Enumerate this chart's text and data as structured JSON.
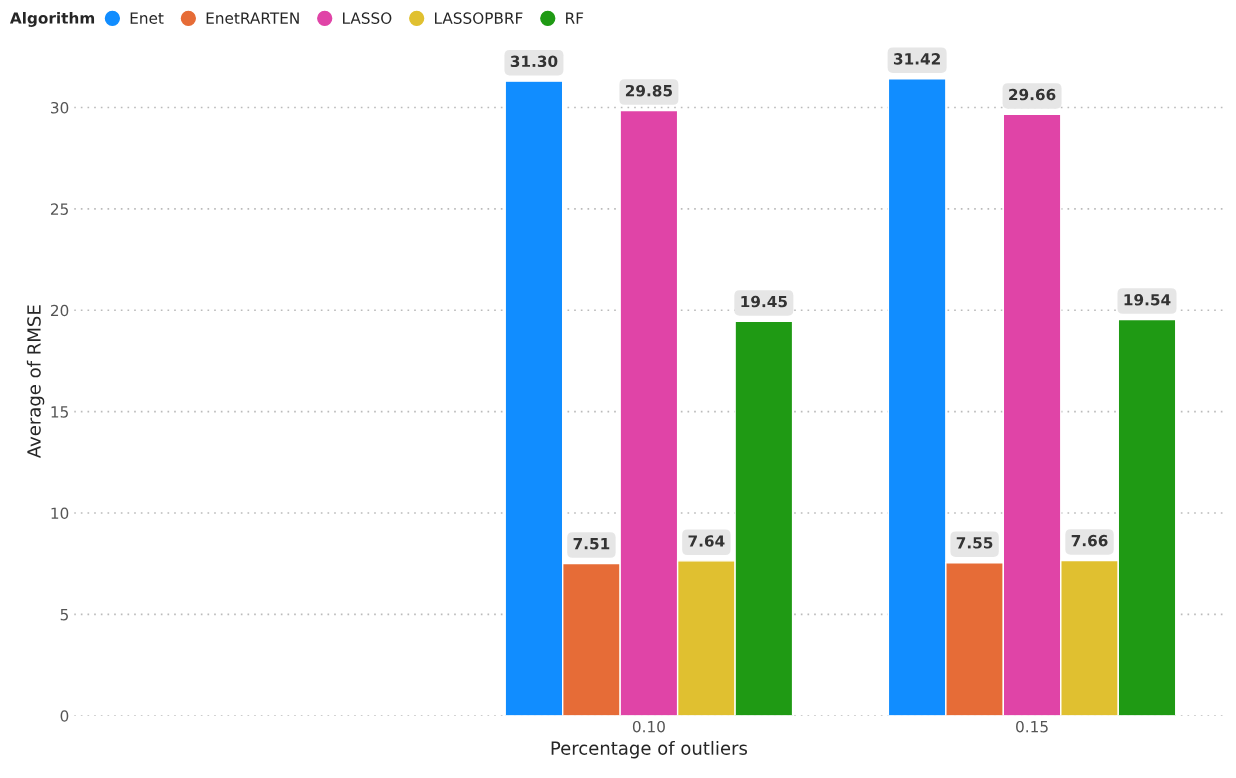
{
  "chart_data": {
    "type": "bar",
    "xlabel": "Percentage of outliers",
    "ylabel": "Average of RMSE",
    "legend_title": "Algorithm",
    "legend": "top left",
    "grid": "y",
    "categories": [
      null,
      "0.10",
      "0.15"
    ],
    "series": [
      {
        "name": "Enet",
        "color": "#118dff",
        "values": [
          null,
          31.3,
          31.42
        ],
        "value_labels": [
          null,
          "31.30",
          "31.42"
        ]
      },
      {
        "name": "EnetRARTEN",
        "color": "#e66c37",
        "values": [
          null,
          7.51,
          7.55
        ],
        "value_labels": [
          null,
          "7.51",
          "7.55"
        ]
      },
      {
        "name": "LASSO",
        "color": "#e044a7",
        "values": [
          null,
          29.85,
          29.66
        ],
        "value_labels": [
          null,
          "29.85",
          "29.66"
        ]
      },
      {
        "name": "LASSOPBRF",
        "color": "#e0c030",
        "values": [
          null,
          7.64,
          7.66
        ],
        "value_labels": [
          null,
          "7.64",
          "7.66"
        ]
      },
      {
        "name": "RF",
        "color": "#1f9a14",
        "values": [
          null,
          19.45,
          19.54
        ],
        "value_labels": [
          null,
          "19.45",
          "19.54"
        ]
      }
    ],
    "ylim": [
      0,
      33
    ],
    "yticks": [
      0,
      5,
      10,
      15,
      20,
      25,
      30
    ]
  }
}
